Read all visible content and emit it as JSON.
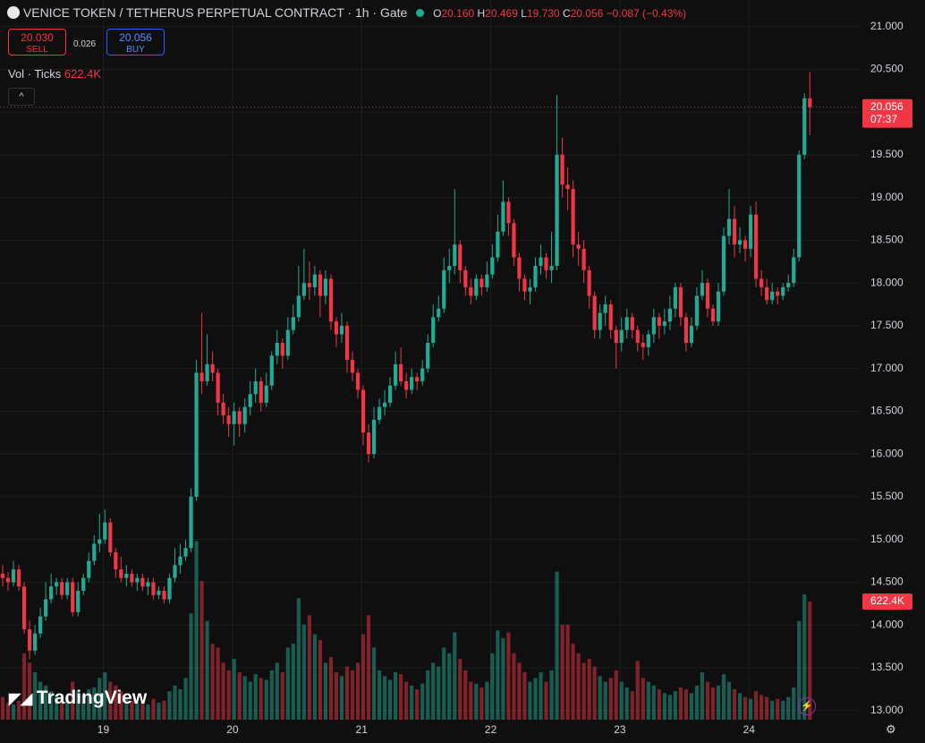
{
  "header": {
    "symbol": "VENICE TOKEN / TETHERUS PERPETUAL CONTRACT · 1h · Gate",
    "o_label": "O",
    "o": "20.160",
    "h_label": "H",
    "h": "20.469",
    "l_label": "L",
    "l": "19.730",
    "c_label": "C",
    "c": "20.056",
    "change": "−0.087 (−0.43%)",
    "sell_price": "20.030",
    "sell": "SELL",
    "spread": "0.026",
    "buy_price": "20.056",
    "buy": "BUY",
    "vol_title": "Vol · Ticks",
    "vol_value": "622.4K",
    "watermark": "TradingView"
  },
  "chart_data": {
    "type": "candlestick",
    "up_color": "#22ab94",
    "down_color": "#f23645",
    "grid": true,
    "xlim": [
      18.2,
      24.85
    ],
    "xticks": [
      19,
      20,
      21,
      22,
      23,
      24
    ],
    "ylim": [
      12.85,
      21.31
    ],
    "yticks": [
      {
        "value": 13,
        "label": "13.000"
      },
      {
        "value": 13.5,
        "label": "13.500"
      },
      {
        "value": 14,
        "label": "14.000"
      },
      {
        "value": 14.5,
        "label": "14.500"
      },
      {
        "value": 15,
        "label": "15.000"
      },
      {
        "value": 15.5,
        "label": "15.500"
      },
      {
        "value": 16,
        "label": "16.000"
      },
      {
        "value": 16.5,
        "label": "16.500"
      },
      {
        "value": 17,
        "label": "17.000"
      },
      {
        "value": 17.5,
        "label": "17.500"
      },
      {
        "value": 18,
        "label": "18.000"
      },
      {
        "value": 18.5,
        "label": "18.500"
      },
      {
        "value": 19,
        "label": "19.000"
      },
      {
        "value": 19.5,
        "label": "19.500"
      },
      {
        "value": 20,
        "label": "20.000"
      },
      {
        "value": 20.5,
        "label": "20.500"
      },
      {
        "value": 21,
        "label": "21.000"
      }
    ],
    "volume_lim": [
      0,
      3790000
    ],
    "last_price": {
      "value": 20.056,
      "label": "20.056"
    },
    "countdown": "07:37",
    "last_volume": {
      "value": 622400,
      "label": "622.4K"
    },
    "candles": [
      {
        "o": 14.6,
        "c": 14.55,
        "h": 14.7,
        "l": 14.45,
        "v": 120000
      },
      {
        "o": 14.55,
        "c": 14.5,
        "h": 14.62,
        "l": 14.4,
        "v": 90000
      },
      {
        "o": 14.5,
        "c": 14.65,
        "h": 14.75,
        "l": 14.45,
        "v": 80000
      },
      {
        "o": 14.65,
        "c": 14.45,
        "h": 14.7,
        "l": 14.4,
        "v": 100000
      },
      {
        "o": 14.45,
        "c": 13.95,
        "h": 14.5,
        "l": 13.9,
        "v": 350000
      },
      {
        "o": 13.95,
        "c": 13.7,
        "h": 14.05,
        "l": 13.6,
        "v": 300000
      },
      {
        "o": 13.7,
        "c": 13.9,
        "h": 14.0,
        "l": 13.65,
        "v": 250000
      },
      {
        "o": 13.9,
        "c": 14.1,
        "h": 14.2,
        "l": 13.85,
        "v": 200000
      },
      {
        "o": 14.1,
        "c": 14.3,
        "h": 14.5,
        "l": 14.05,
        "v": 180000
      },
      {
        "o": 14.3,
        "c": 14.45,
        "h": 14.6,
        "l": 14.25,
        "v": 150000
      },
      {
        "o": 14.45,
        "c": 14.5,
        "h": 14.55,
        "l": 14.35,
        "v": 130000
      },
      {
        "o": 14.5,
        "c": 14.35,
        "h": 14.55,
        "l": 14.3,
        "v": 120000
      },
      {
        "o": 14.35,
        "c": 14.5,
        "h": 14.55,
        "l": 14.3,
        "v": 110000
      },
      {
        "o": 14.5,
        "c": 14.15,
        "h": 14.55,
        "l": 14.1,
        "v": 200000
      },
      {
        "o": 14.15,
        "c": 14.4,
        "h": 14.5,
        "l": 14.1,
        "v": 150000
      },
      {
        "o": 14.4,
        "c": 14.55,
        "h": 14.6,
        "l": 14.35,
        "v": 130000
      },
      {
        "o": 14.55,
        "c": 14.75,
        "h": 14.85,
        "l": 14.5,
        "v": 160000
      },
      {
        "o": 14.75,
        "c": 14.95,
        "h": 15.05,
        "l": 14.7,
        "v": 170000
      },
      {
        "o": 14.95,
        "c": 15.0,
        "h": 15.3,
        "l": 14.85,
        "v": 220000
      },
      {
        "o": 15.0,
        "c": 15.2,
        "h": 15.35,
        "l": 14.95,
        "v": 250000
      },
      {
        "o": 15.2,
        "c": 14.85,
        "h": 15.25,
        "l": 14.8,
        "v": 200000
      },
      {
        "o": 14.85,
        "c": 14.65,
        "h": 14.9,
        "l": 14.55,
        "v": 180000
      },
      {
        "o": 14.65,
        "c": 14.55,
        "h": 14.8,
        "l": 14.5,
        "v": 150000
      },
      {
        "o": 14.55,
        "c": 14.6,
        "h": 14.7,
        "l": 14.45,
        "v": 110000
      },
      {
        "o": 14.6,
        "c": 14.5,
        "h": 14.65,
        "l": 14.45,
        "v": 100000
      },
      {
        "o": 14.5,
        "c": 14.55,
        "h": 14.6,
        "l": 14.4,
        "v": 90000
      },
      {
        "o": 14.55,
        "c": 14.45,
        "h": 14.6,
        "l": 14.4,
        "v": 95000
      },
      {
        "o": 14.45,
        "c": 14.5,
        "h": 14.55,
        "l": 14.35,
        "v": 80000
      },
      {
        "o": 14.5,
        "c": 14.35,
        "h": 14.55,
        "l": 14.3,
        "v": 110000
      },
      {
        "o": 14.35,
        "c": 14.4,
        "h": 14.45,
        "l": 14.3,
        "v": 90000
      },
      {
        "o": 14.4,
        "c": 14.3,
        "h": 14.45,
        "l": 14.25,
        "v": 100000
      },
      {
        "o": 14.3,
        "c": 14.55,
        "h": 14.6,
        "l": 14.25,
        "v": 150000
      },
      {
        "o": 14.55,
        "c": 14.7,
        "h": 14.9,
        "l": 14.5,
        "v": 180000
      },
      {
        "o": 14.7,
        "c": 14.8,
        "h": 14.95,
        "l": 14.6,
        "v": 160000
      },
      {
        "o": 14.8,
        "c": 14.9,
        "h": 15.0,
        "l": 14.75,
        "v": 220000
      },
      {
        "o": 14.9,
        "c": 15.5,
        "h": 15.6,
        "l": 14.85,
        "v": 560000
      },
      {
        "o": 15.5,
        "c": 16.95,
        "h": 17.1,
        "l": 15.45,
        "v": 940000
      },
      {
        "o": 16.95,
        "c": 16.85,
        "h": 17.65,
        "l": 16.7,
        "v": 730000
      },
      {
        "o": 16.85,
        "c": 17.05,
        "h": 17.4,
        "l": 16.8,
        "v": 520000
      },
      {
        "o": 17.05,
        "c": 16.95,
        "h": 17.2,
        "l": 16.85,
        "v": 400000
      },
      {
        "o": 16.95,
        "c": 16.6,
        "h": 17.0,
        "l": 16.45,
        "v": 380000
      },
      {
        "o": 16.6,
        "c": 16.45,
        "h": 16.7,
        "l": 16.35,
        "v": 300000
      },
      {
        "o": 16.45,
        "c": 16.35,
        "h": 16.55,
        "l": 16.2,
        "v": 260000
      },
      {
        "o": 16.35,
        "c": 16.5,
        "h": 16.6,
        "l": 16.1,
        "v": 320000
      },
      {
        "o": 16.5,
        "c": 16.35,
        "h": 16.55,
        "l": 16.2,
        "v": 250000
      },
      {
        "o": 16.35,
        "c": 16.55,
        "h": 16.65,
        "l": 16.25,
        "v": 230000
      },
      {
        "o": 16.55,
        "c": 16.7,
        "h": 16.85,
        "l": 16.45,
        "v": 200000
      },
      {
        "o": 16.7,
        "c": 16.85,
        "h": 17.0,
        "l": 16.6,
        "v": 240000
      },
      {
        "o": 16.85,
        "c": 16.6,
        "h": 16.9,
        "l": 16.5,
        "v": 220000
      },
      {
        "o": 16.6,
        "c": 16.8,
        "h": 16.95,
        "l": 16.55,
        "v": 210000
      },
      {
        "o": 16.8,
        "c": 17.15,
        "h": 17.2,
        "l": 16.75,
        "v": 260000
      },
      {
        "o": 17.15,
        "c": 17.3,
        "h": 17.45,
        "l": 17.05,
        "v": 300000
      },
      {
        "o": 17.3,
        "c": 17.15,
        "h": 17.35,
        "l": 17.0,
        "v": 250000
      },
      {
        "o": 17.15,
        "c": 17.45,
        "h": 17.6,
        "l": 17.1,
        "v": 380000
      },
      {
        "o": 17.45,
        "c": 17.6,
        "h": 17.75,
        "l": 17.4,
        "v": 400000
      },
      {
        "o": 17.6,
        "c": 17.85,
        "h": 18.2,
        "l": 17.55,
        "v": 640000
      },
      {
        "o": 17.85,
        "c": 18.0,
        "h": 18.4,
        "l": 17.8,
        "v": 500000
      },
      {
        "o": 18.0,
        "c": 17.95,
        "h": 18.25,
        "l": 17.8,
        "v": 550000
      },
      {
        "o": 17.95,
        "c": 18.1,
        "h": 18.2,
        "l": 17.85,
        "v": 450000
      },
      {
        "o": 18.1,
        "c": 17.85,
        "h": 18.15,
        "l": 17.6,
        "v": 420000
      },
      {
        "o": 17.85,
        "c": 18.05,
        "h": 18.15,
        "l": 17.75,
        "v": 300000
      },
      {
        "o": 18.05,
        "c": 17.55,
        "h": 18.1,
        "l": 17.45,
        "v": 330000
      },
      {
        "o": 17.55,
        "c": 17.4,
        "h": 17.6,
        "l": 17.25,
        "v": 250000
      },
      {
        "o": 17.4,
        "c": 17.5,
        "h": 17.65,
        "l": 17.3,
        "v": 230000
      },
      {
        "o": 17.5,
        "c": 17.1,
        "h": 17.55,
        "l": 16.95,
        "v": 280000
      },
      {
        "o": 17.1,
        "c": 16.95,
        "h": 17.2,
        "l": 16.85,
        "v": 260000
      },
      {
        "o": 16.95,
        "c": 16.75,
        "h": 17.0,
        "l": 16.65,
        "v": 300000
      },
      {
        "o": 16.75,
        "c": 16.25,
        "h": 16.8,
        "l": 16.1,
        "v": 450000
      },
      {
        "o": 16.25,
        "c": 16.0,
        "h": 16.35,
        "l": 15.9,
        "v": 550000
      },
      {
        "o": 16.0,
        "c": 16.4,
        "h": 16.55,
        "l": 15.95,
        "v": 380000
      },
      {
        "o": 16.4,
        "c": 16.55,
        "h": 16.65,
        "l": 16.35,
        "v": 260000
      },
      {
        "o": 16.55,
        "c": 16.6,
        "h": 16.75,
        "l": 16.45,
        "v": 230000
      },
      {
        "o": 16.6,
        "c": 16.8,
        "h": 16.9,
        "l": 16.55,
        "v": 210000
      },
      {
        "o": 16.8,
        "c": 17.05,
        "h": 17.2,
        "l": 16.75,
        "v": 250000
      },
      {
        "o": 17.05,
        "c": 16.85,
        "h": 17.25,
        "l": 16.8,
        "v": 240000
      },
      {
        "o": 16.85,
        "c": 16.75,
        "h": 16.95,
        "l": 16.65,
        "v": 200000
      },
      {
        "o": 16.75,
        "c": 16.9,
        "h": 17.0,
        "l": 16.7,
        "v": 180000
      },
      {
        "o": 16.9,
        "c": 16.85,
        "h": 16.95,
        "l": 16.75,
        "v": 160000
      },
      {
        "o": 16.85,
        "c": 17.0,
        "h": 17.1,
        "l": 16.8,
        "v": 190000
      },
      {
        "o": 17.0,
        "c": 17.3,
        "h": 17.4,
        "l": 16.95,
        "v": 260000
      },
      {
        "o": 17.3,
        "c": 17.6,
        "h": 17.75,
        "l": 17.25,
        "v": 300000
      },
      {
        "o": 17.6,
        "c": 17.7,
        "h": 17.85,
        "l": 17.55,
        "v": 280000
      },
      {
        "o": 17.7,
        "c": 18.15,
        "h": 18.3,
        "l": 17.65,
        "v": 380000
      },
      {
        "o": 18.15,
        "c": 18.2,
        "h": 18.4,
        "l": 18.0,
        "v": 350000
      },
      {
        "o": 18.2,
        "c": 18.45,
        "h": 19.1,
        "l": 18.1,
        "v": 460000
      },
      {
        "o": 18.45,
        "c": 18.15,
        "h": 18.5,
        "l": 18.0,
        "v": 320000
      },
      {
        "o": 18.15,
        "c": 17.95,
        "h": 18.2,
        "l": 17.85,
        "v": 260000
      },
      {
        "o": 17.95,
        "c": 17.85,
        "h": 18.05,
        "l": 17.75,
        "v": 200000
      },
      {
        "o": 17.85,
        "c": 18.05,
        "h": 18.1,
        "l": 17.8,
        "v": 190000
      },
      {
        "o": 18.05,
        "c": 17.95,
        "h": 18.1,
        "l": 17.85,
        "v": 170000
      },
      {
        "o": 17.95,
        "c": 18.1,
        "h": 18.25,
        "l": 17.9,
        "v": 200000
      },
      {
        "o": 18.1,
        "c": 18.3,
        "h": 18.45,
        "l": 18.05,
        "v": 350000
      },
      {
        "o": 18.3,
        "c": 18.6,
        "h": 18.8,
        "l": 18.25,
        "v": 470000
      },
      {
        "o": 18.6,
        "c": 18.95,
        "h": 19.2,
        "l": 18.55,
        "v": 430000
      },
      {
        "o": 18.95,
        "c": 18.7,
        "h": 19.0,
        "l": 18.55,
        "v": 460000
      },
      {
        "o": 18.7,
        "c": 18.3,
        "h": 18.75,
        "l": 18.2,
        "v": 350000
      },
      {
        "o": 18.3,
        "c": 18.05,
        "h": 18.35,
        "l": 17.9,
        "v": 300000
      },
      {
        "o": 18.05,
        "c": 17.9,
        "h": 18.1,
        "l": 17.8,
        "v": 250000
      },
      {
        "o": 17.9,
        "c": 17.95,
        "h": 18.05,
        "l": 17.75,
        "v": 200000
      },
      {
        "o": 17.95,
        "c": 18.2,
        "h": 18.3,
        "l": 17.9,
        "v": 220000
      },
      {
        "o": 18.2,
        "c": 18.3,
        "h": 18.45,
        "l": 18.1,
        "v": 250000
      },
      {
        "o": 18.3,
        "c": 18.15,
        "h": 18.35,
        "l": 18.05,
        "v": 200000
      },
      {
        "o": 18.15,
        "c": 18.2,
        "h": 18.6,
        "l": 18.0,
        "v": 260000
      },
      {
        "o": 18.2,
        "c": 19.5,
        "h": 20.2,
        "l": 18.15,
        "v": 780000
      },
      {
        "o": 19.5,
        "c": 19.15,
        "h": 19.7,
        "l": 19.0,
        "v": 500000
      },
      {
        "o": 19.15,
        "c": 19.1,
        "h": 19.35,
        "l": 18.85,
        "v": 500000
      },
      {
        "o": 19.1,
        "c": 18.45,
        "h": 19.2,
        "l": 18.3,
        "v": 400000
      },
      {
        "o": 18.45,
        "c": 18.4,
        "h": 18.6,
        "l": 18.2,
        "v": 350000
      },
      {
        "o": 18.4,
        "c": 18.15,
        "h": 18.5,
        "l": 18.0,
        "v": 300000
      },
      {
        "o": 18.15,
        "c": 17.85,
        "h": 18.2,
        "l": 17.7,
        "v": 320000
      },
      {
        "o": 17.85,
        "c": 17.45,
        "h": 17.9,
        "l": 17.35,
        "v": 280000
      },
      {
        "o": 17.45,
        "c": 17.65,
        "h": 17.75,
        "l": 17.35,
        "v": 230000
      },
      {
        "o": 17.65,
        "c": 17.75,
        "h": 17.85,
        "l": 17.5,
        "v": 200000
      },
      {
        "o": 17.75,
        "c": 17.45,
        "h": 17.8,
        "l": 17.35,
        "v": 220000
      },
      {
        "o": 17.45,
        "c": 17.3,
        "h": 17.5,
        "l": 17.0,
        "v": 260000
      },
      {
        "o": 17.3,
        "c": 17.45,
        "h": 17.6,
        "l": 17.2,
        "v": 200000
      },
      {
        "o": 17.45,
        "c": 17.6,
        "h": 17.7,
        "l": 17.35,
        "v": 170000
      },
      {
        "o": 17.6,
        "c": 17.45,
        "h": 17.65,
        "l": 17.35,
        "v": 150000
      },
      {
        "o": 17.45,
        "c": 17.3,
        "h": 17.5,
        "l": 17.2,
        "v": 310000
      },
      {
        "o": 17.3,
        "c": 17.25,
        "h": 17.4,
        "l": 17.1,
        "v": 220000
      },
      {
        "o": 17.25,
        "c": 17.4,
        "h": 17.45,
        "l": 17.15,
        "v": 200000
      },
      {
        "o": 17.4,
        "c": 17.6,
        "h": 17.7,
        "l": 17.3,
        "v": 180000
      },
      {
        "o": 17.6,
        "c": 17.5,
        "h": 17.65,
        "l": 17.35,
        "v": 160000
      },
      {
        "o": 17.5,
        "c": 17.55,
        "h": 17.7,
        "l": 17.4,
        "v": 140000
      },
      {
        "o": 17.55,
        "c": 17.7,
        "h": 17.85,
        "l": 17.45,
        "v": 130000
      },
      {
        "o": 17.7,
        "c": 17.95,
        "h": 18.0,
        "l": 17.6,
        "v": 150000
      },
      {
        "o": 17.95,
        "c": 17.6,
        "h": 18.0,
        "l": 17.5,
        "v": 170000
      },
      {
        "o": 17.6,
        "c": 17.3,
        "h": 17.65,
        "l": 17.2,
        "v": 160000
      },
      {
        "o": 17.3,
        "c": 17.5,
        "h": 17.6,
        "l": 17.25,
        "v": 140000
      },
      {
        "o": 17.5,
        "c": 17.85,
        "h": 17.95,
        "l": 17.45,
        "v": 180000
      },
      {
        "o": 17.85,
        "c": 18.0,
        "h": 18.15,
        "l": 17.8,
        "v": 250000
      },
      {
        "o": 18.0,
        "c": 17.7,
        "h": 18.05,
        "l": 17.6,
        "v": 200000
      },
      {
        "o": 17.7,
        "c": 17.55,
        "h": 17.75,
        "l": 17.5,
        "v": 170000
      },
      {
        "o": 17.55,
        "c": 17.9,
        "h": 18.0,
        "l": 17.5,
        "v": 180000
      },
      {
        "o": 17.9,
        "c": 18.55,
        "h": 18.65,
        "l": 17.85,
        "v": 240000
      },
      {
        "o": 18.55,
        "c": 18.75,
        "h": 19.1,
        "l": 18.45,
        "v": 200000
      },
      {
        "o": 18.75,
        "c": 18.45,
        "h": 18.9,
        "l": 18.3,
        "v": 160000
      },
      {
        "o": 18.45,
        "c": 18.5,
        "h": 18.65,
        "l": 18.35,
        "v": 140000
      },
      {
        "o": 18.5,
        "c": 18.4,
        "h": 18.55,
        "l": 18.25,
        "v": 120000
      },
      {
        "o": 18.4,
        "c": 18.8,
        "h": 18.9,
        "l": 18.3,
        "v": 110000
      },
      {
        "o": 18.8,
        "c": 18.05,
        "h": 18.95,
        "l": 17.95,
        "v": 150000
      },
      {
        "o": 18.05,
        "c": 17.95,
        "h": 18.15,
        "l": 17.85,
        "v": 130000
      },
      {
        "o": 17.95,
        "c": 17.8,
        "h": 18.05,
        "l": 17.75,
        "v": 120000
      },
      {
        "o": 17.8,
        "c": 17.9,
        "h": 18.0,
        "l": 17.75,
        "v": 100000
      },
      {
        "o": 17.9,
        "c": 17.85,
        "h": 17.95,
        "l": 17.75,
        "v": 110000
      },
      {
        "o": 17.85,
        "c": 17.95,
        "h": 18.0,
        "l": 17.8,
        "v": 100000
      },
      {
        "o": 17.95,
        "c": 18.0,
        "h": 18.1,
        "l": 17.9,
        "v": 120000
      },
      {
        "o": 18.0,
        "c": 18.3,
        "h": 18.4,
        "l": 17.95,
        "v": 170000
      },
      {
        "o": 18.3,
        "c": 19.5,
        "h": 19.55,
        "l": 18.25,
        "v": 520000
      },
      {
        "o": 19.5,
        "c": 20.16,
        "h": 20.22,
        "l": 19.45,
        "v": 660000
      },
      {
        "o": 20.16,
        "c": 20.056,
        "h": 20.469,
        "l": 19.73,
        "v": 622400
      }
    ]
  }
}
